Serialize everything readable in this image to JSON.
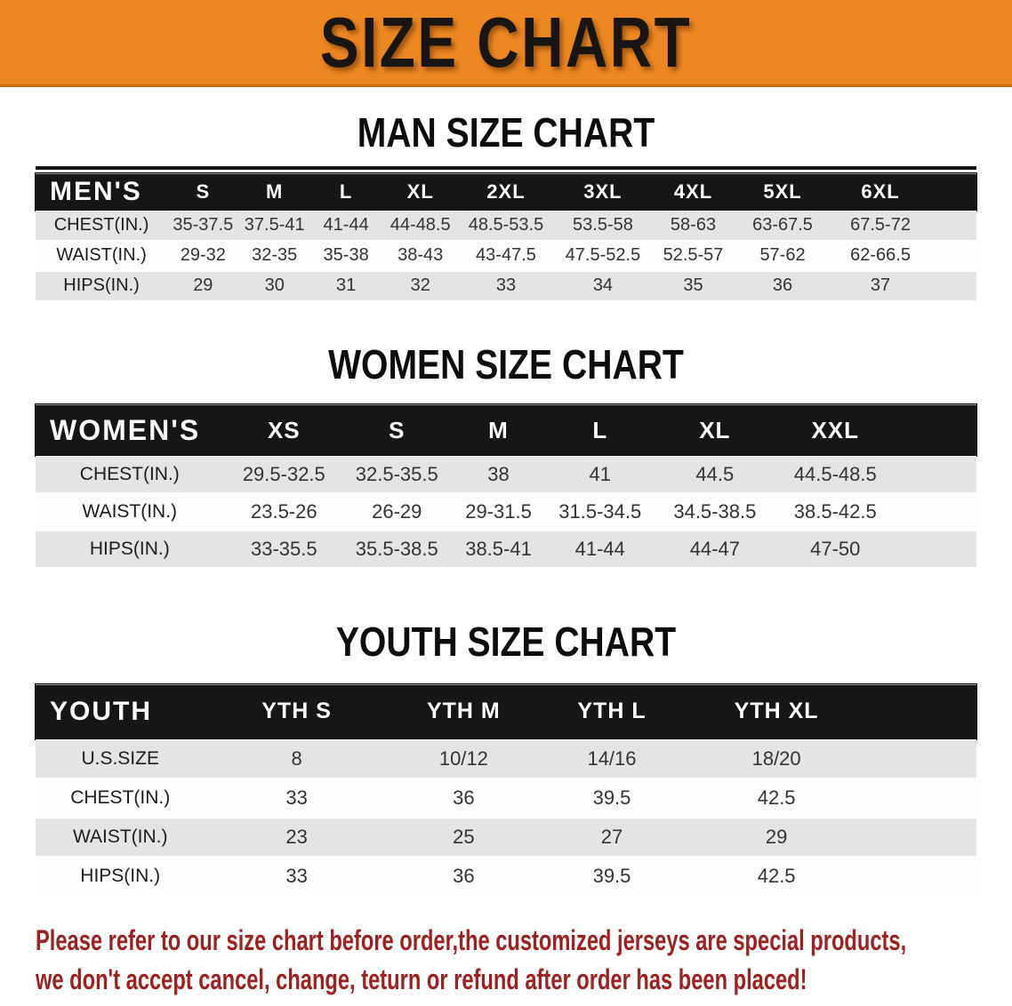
{
  "banner": {
    "title": "SIZE CHART"
  },
  "colors": {
    "banner_bg": "#ED8722",
    "header_bar": "#161616",
    "row_alt": "#E4E4E4",
    "disclaimer_red": "#9E2121"
  },
  "sections": [
    {
      "title": "MAN SIZE CHART",
      "header": {
        "label": "MEN'S",
        "sizes": [
          "S",
          "M",
          "L",
          "XL",
          "2XL",
          "3XL",
          "4XL",
          "5XL",
          "6XL"
        ]
      },
      "rows": [
        {
          "label": "CHEST(IN.)",
          "values": [
            "35-37.5",
            "37.5-41",
            "41-44",
            "44-48.5",
            "48.5-53.5",
            "53.5-58",
            "58-63",
            "63-67.5",
            "67.5-72"
          ]
        },
        {
          "label": "WAIST(IN.)",
          "values": [
            "29-32",
            "32-35",
            "35-38",
            "38-43",
            "43-47.5",
            "47.5-52.5",
            "52.5-57",
            "57-62",
            "62-66.5"
          ]
        },
        {
          "label": "HIPS(IN.)",
          "values": [
            "29",
            "30",
            "31",
            "32",
            "33",
            "34",
            "35",
            "36",
            "37"
          ]
        }
      ]
    },
    {
      "title": "WOMEN SIZE CHART",
      "header": {
        "label": "WOMEN'S",
        "sizes": [
          "XS",
          "S",
          "M",
          "L",
          "XL",
          "XXL"
        ]
      },
      "rows": [
        {
          "label": "CHEST(IN.)",
          "values": [
            "29.5-32.5",
            "32.5-35.5",
            "38",
            "41",
            "44.5",
            "44.5-48.5"
          ]
        },
        {
          "label": "WAIST(IN.)",
          "values": [
            "23.5-26",
            "26-29",
            "29-31.5",
            "31.5-34.5",
            "34.5-38.5",
            "38.5-42.5"
          ]
        },
        {
          "label": "HIPS(IN.)",
          "values": [
            "33-35.5",
            "35.5-38.5",
            "38.5-41",
            "41-44",
            "44-47",
            "47-50"
          ]
        }
      ]
    },
    {
      "title": "YOUTH SIZE CHART",
      "header": {
        "label": "YOUTH",
        "sizes": [
          "YTH S",
          "YTH M",
          "YTH L",
          "YTH XL"
        ]
      },
      "rows": [
        {
          "label": "U.S.SIZE",
          "values": [
            "8",
            "10/12",
            "14/16",
            "18/20"
          ]
        },
        {
          "label": "CHEST(IN.)",
          "values": [
            "33",
            "36",
            "39.5",
            "42.5"
          ]
        },
        {
          "label": "WAIST(IN.)",
          "values": [
            "23",
            "25",
            "27",
            "29"
          ]
        },
        {
          "label": "HIPS(IN.)",
          "values": [
            "33",
            "36",
            "39.5",
            "42.5"
          ]
        }
      ]
    }
  ],
  "disclaimer": {
    "line1": "Please refer to our size chart before order,the customized jerseys are special products,",
    "line2": "we don't accept cancel, change, teturn or refund after order has been placed!"
  }
}
